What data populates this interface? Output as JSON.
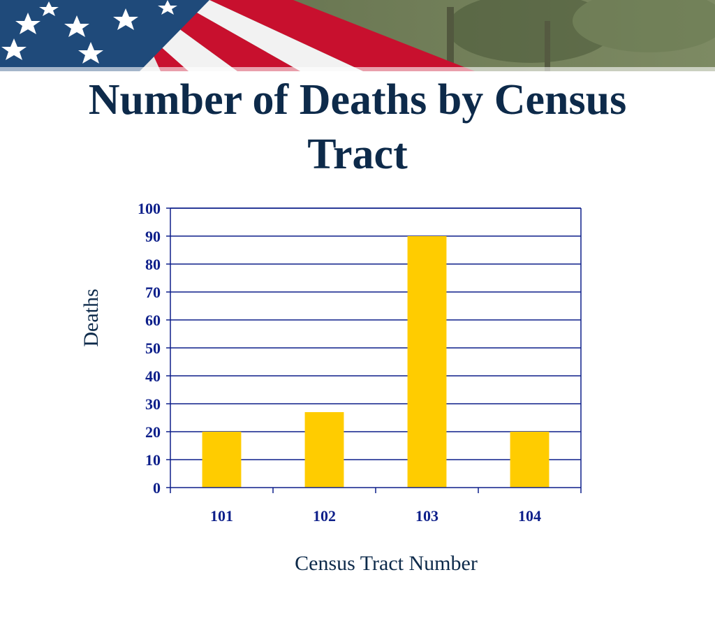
{
  "title": "Number of Deaths by Census Tract",
  "colors": {
    "title": "#0d2a4a",
    "bar": "#ffcc00",
    "axis": "#0d1f8a",
    "gridline": "#0d1f8a"
  },
  "banner": {
    "decorative": "american-flag"
  },
  "chart_data": {
    "type": "bar",
    "categories": [
      "101",
      "102",
      "103",
      "104"
    ],
    "values": [
      20,
      27,
      90,
      20
    ],
    "xlabel": "Census Tract Number",
    "ylabel": "Deaths",
    "ylim": [
      0,
      100
    ],
    "yticks": [
      "0",
      "10",
      "20",
      "30",
      "40",
      "50",
      "60",
      "70",
      "80",
      "90",
      "100"
    ],
    "grid": true,
    "legend": "none"
  }
}
